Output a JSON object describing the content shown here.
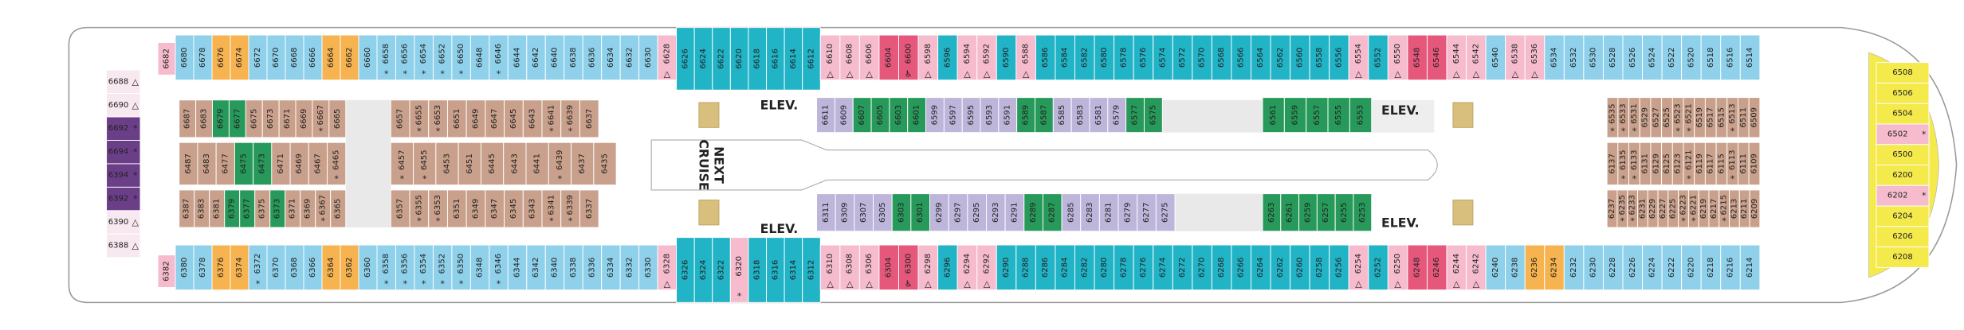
{
  "kinds": {
    "b": "#8fd0ea",
    "t": "#21b3c6",
    "p": "#f6bccd",
    "r": "#e5577b",
    "o": "#f6b34f",
    "w": "#c9a08b",
    "g": "#27995a",
    "l": "#bdb5da",
    "u": "#6b3f88",
    "y": "#f4ea4c",
    "x": "#f8e8ef"
  },
  "labels": {
    "elev": [
      "ELEV.",
      "ELEV.",
      "ELEV.",
      "ELEV."
    ],
    "next": [
      "NEXT",
      "CRUISE"
    ]
  },
  "sections": [
    {
      "kind": "b",
      "cabins": [
        {
          "n": "6680"
        },
        {
          "n": "6678"
        },
        {
          "n": "6676",
          "k": "o"
        },
        {
          "n": "6674",
          "k": "o"
        },
        {
          "n": "6672"
        },
        {
          "n": "6670"
        },
        {
          "n": "6668"
        },
        {
          "n": "6666"
        },
        {
          "n": "6664",
          "k": "o"
        },
        {
          "n": "6662",
          "k": "o"
        },
        {
          "n": "6660"
        }
      ]
    },
    {
      "kind": "b",
      "cabins": [
        {
          "n": "6658",
          "s": "*"
        },
        {
          "n": "6656",
          "s": "*"
        },
        {
          "n": "6654",
          "s": "*"
        },
        {
          "n": "6652",
          "s": "*"
        },
        {
          "n": "6650",
          "s": "*"
        },
        {
          "n": "6648"
        },
        {
          "n": "6646",
          "s": "*"
        },
        {
          "n": "6644"
        },
        {
          "n": "6642"
        },
        {
          "n": "6640"
        },
        {
          "n": "6638"
        },
        {
          "n": "6636"
        },
        {
          "n": "6634"
        },
        {
          "n": "6632"
        },
        {
          "n": "6630"
        },
        {
          "n": "6628",
          "k": "p",
          "s": "△"
        }
      ]
    },
    {
      "kind": "t",
      "cabins": [
        {
          "n": "6626"
        },
        {
          "n": "6624"
        },
        {
          "n": "6622"
        },
        {
          "n": "6620"
        },
        {
          "n": "6618"
        },
        {
          "n": "6616"
        },
        {
          "n": "6614"
        },
        {
          "n": "6612"
        }
      ]
    },
    {
      "kind": "t",
      "cabins": [
        {
          "n": "6610",
          "k": "p",
          "s": "△"
        },
        {
          "n": "6608",
          "k": "p",
          "s": "△"
        },
        {
          "n": "6606",
          "k": "p",
          "s": "△"
        },
        {
          "n": "6604",
          "k": "r"
        },
        {
          "n": "6600",
          "k": "r",
          "s": "♿"
        },
        {
          "n": "6598",
          "k": "p",
          "s": "△"
        },
        {
          "n": "6596"
        },
        {
          "n": "6594",
          "k": "p",
          "s": "△"
        },
        {
          "n": "6592",
          "k": "p",
          "s": "△"
        },
        {
          "n": "6590"
        },
        {
          "n": "6588",
          "k": "p",
          "s": "△"
        },
        {
          "n": "6586"
        },
        {
          "n": "6584"
        },
        {
          "n": "6582"
        },
        {
          "n": "6580"
        },
        {
          "n": "6578"
        },
        {
          "n": "6576"
        },
        {
          "n": "6574"
        },
        {
          "n": "6572"
        },
        {
          "n": "6570"
        },
        {
          "n": "6568"
        },
        {
          "n": "6566"
        },
        {
          "n": "6564"
        },
        {
          "n": "6562"
        },
        {
          "n": "6560"
        },
        {
          "n": "6558"
        },
        {
          "n": "6556"
        },
        {
          "n": "6554",
          "k": "p",
          "s": "△"
        },
        {
          "n": "6552"
        },
        {
          "n": "6550",
          "k": "p",
          "s": "△"
        },
        {
          "n": "6548",
          "k": "r"
        },
        {
          "n": "6546",
          "k": "r"
        },
        {
          "n": "6544",
          "k": "p",
          "s": "△"
        },
        {
          "n": "6542",
          "k": "p",
          "s": "△"
        },
        {
          "n": "6540",
          "k": "b"
        },
        {
          "n": "6538",
          "k": "p",
          "s": "△"
        },
        {
          "n": "6536",
          "k": "p",
          "s": "△"
        },
        {
          "n": "6534",
          "k": "b"
        },
        {
          "n": "6532",
          "k": "b"
        },
        {
          "n": "6530",
          "k": "b"
        },
        {
          "n": "6528",
          "k": "b"
        },
        {
          "n": "6526",
          "k": "b"
        },
        {
          "n": "6524",
          "k": "b"
        },
        {
          "n": "6522",
          "k": "b"
        },
        {
          "n": "6520",
          "k": "b"
        },
        {
          "n": "6518",
          "k": "b"
        },
        {
          "n": "6516",
          "k": "b"
        },
        {
          "n": "6514",
          "k": "b"
        }
      ]
    },
    {
      "kind": "w",
      "cabins": [
        {
          "n": "6687"
        },
        {
          "n": "6683"
        },
        {
          "n": "6679",
          "k": "g"
        },
        {
          "n": "6677",
          "k": "g"
        },
        {
          "n": "6675"
        },
        {
          "n": "6673"
        },
        {
          "n": "6671"
        },
        {
          "n": "6669"
        },
        {
          "n": "6667",
          "s": "*"
        },
        {
          "n": "6665"
        }
      ]
    },
    {
      "kind": "w",
      "cabins": [
        {
          "n": "6657"
        },
        {
          "n": "6655",
          "s": "*"
        },
        {
          "n": "6653",
          "s": "*"
        },
        {
          "n": "6651"
        },
        {
          "n": "6649"
        },
        {
          "n": "6647"
        },
        {
          "n": "6645"
        },
        {
          "n": "6643"
        },
        {
          "n": "6641",
          "s": "*"
        },
        {
          "n": "6639",
          "s": "*"
        },
        {
          "n": "6637"
        }
      ]
    },
    {
      "kind": "w",
      "cabins": [
        {
          "n": "6487"
        },
        {
          "n": "6483"
        },
        {
          "n": "6477"
        },
        {
          "n": "6475",
          "k": "g"
        },
        {
          "n": "6473",
          "k": "g"
        },
        {
          "n": "6471"
        },
        {
          "n": "6469"
        },
        {
          "n": "6467"
        },
        {
          "n": "6465",
          "s": "*"
        }
      ]
    },
    {
      "kind": "w",
      "cabins": [
        {
          "n": "6457",
          "s": "*"
        },
        {
          "n": "6455",
          "s": "*"
        },
        {
          "n": "6453"
        },
        {
          "n": "6451"
        },
        {
          "n": "6445"
        },
        {
          "n": "6443"
        },
        {
          "n": "6441"
        },
        {
          "n": "6439",
          "s": "*"
        },
        {
          "n": "6437"
        },
        {
          "n": "6435"
        }
      ]
    },
    {
      "kind": "w",
      "cabins": [
        {
          "n": "6387"
        },
        {
          "n": "6383"
        },
        {
          "n": "6381"
        },
        {
          "n": "6379",
          "k": "g"
        },
        {
          "n": "6377",
          "k": "g"
        },
        {
          "n": "6375"
        },
        {
          "n": "6373",
          "k": "g"
        },
        {
          "n": "6371"
        },
        {
          "n": "6369"
        },
        {
          "n": "6367",
          "s": "*"
        },
        {
          "n": "6365"
        }
      ]
    },
    {
      "kind": "w",
      "cabins": [
        {
          "n": "6357"
        },
        {
          "n": "6355",
          "s": "*"
        },
        {
          "n": "6353",
          "s": "*"
        },
        {
          "n": "6351"
        },
        {
          "n": "6349"
        },
        {
          "n": "6347"
        },
        {
          "n": "6345"
        },
        {
          "n": "6343"
        },
        {
          "n": "6341",
          "s": "*"
        },
        {
          "n": "6339",
          "s": "*"
        },
        {
          "n": "6337"
        }
      ]
    },
    {
      "kind": "b",
      "cabins": [
        {
          "n": "6380"
        },
        {
          "n": "6378"
        },
        {
          "n": "6376",
          "k": "o"
        },
        {
          "n": "6374",
          "k": "o"
        },
        {
          "n": "6372",
          "s": "*"
        },
        {
          "n": "6370"
        },
        {
          "n": "6368"
        },
        {
          "n": "6366"
        },
        {
          "n": "6364",
          "k": "o"
        },
        {
          "n": "6362",
          "k": "o"
        },
        {
          "n": "6360"
        }
      ]
    },
    {
      "kind": "b",
      "cabins": [
        {
          "n": "6358",
          "s": "*"
        },
        {
          "n": "6356",
          "s": "*"
        },
        {
          "n": "6354",
          "s": "*"
        },
        {
          "n": "6352",
          "s": "*"
        },
        {
          "n": "6350",
          "s": "*"
        },
        {
          "n": "6348"
        },
        {
          "n": "6346",
          "s": "*"
        },
        {
          "n": "6344"
        },
        {
          "n": "6342"
        },
        {
          "n": "6340"
        },
        {
          "n": "6338"
        },
        {
          "n": "6336"
        },
        {
          "n": "6334"
        },
        {
          "n": "6332"
        },
        {
          "n": "6330"
        },
        {
          "n": "6328",
          "k": "p",
          "s": "△"
        }
      ]
    },
    {
      "kind": "t",
      "cabins": [
        {
          "n": "6326"
        },
        {
          "n": "6324"
        },
        {
          "n": "6322"
        },
        {
          "n": "6320",
          "k": "p",
          "s": "*"
        },
        {
          "n": "6318"
        },
        {
          "n": "6316"
        },
        {
          "n": "6314"
        },
        {
          "n": "6312"
        }
      ]
    },
    {
      "kind": "t",
      "cabins": [
        {
          "n": "6310",
          "k": "p",
          "s": "△"
        },
        {
          "n": "6308",
          "k": "p",
          "s": "△"
        },
        {
          "n": "6306",
          "k": "p",
          "s": "△"
        },
        {
          "n": "6304",
          "k": "r"
        },
        {
          "n": "6300",
          "k": "r",
          "s": "♿"
        },
        {
          "n": "6298",
          "k": "p",
          "s": "△"
        },
        {
          "n": "6296"
        },
        {
          "n": "6294",
          "k": "p",
          "s": "△"
        },
        {
          "n": "6292",
          "k": "p",
          "s": "△"
        },
        {
          "n": "6290"
        },
        {
          "n": "6288"
        },
        {
          "n": "6286"
        },
        {
          "n": "6284"
        },
        {
          "n": "6282"
        },
        {
          "n": "6280"
        },
        {
          "n": "6278"
        },
        {
          "n": "6276"
        },
        {
          "n": "6274"
        },
        {
          "n": "6272"
        },
        {
          "n": "6270"
        },
        {
          "n": "6268"
        },
        {
          "n": "6266"
        },
        {
          "n": "6264"
        },
        {
          "n": "6262"
        },
        {
          "n": "6260"
        },
        {
          "n": "6258"
        },
        {
          "n": "6256"
        },
        {
          "n": "6254",
          "k": "p",
          "s": "△"
        },
        {
          "n": "6252"
        },
        {
          "n": "6250",
          "k": "p",
          "s": "△"
        },
        {
          "n": "6248",
          "k": "r"
        },
        {
          "n": "6246",
          "k": "r"
        },
        {
          "n": "6244",
          "k": "p",
          "s": "△"
        },
        {
          "n": "6242",
          "k": "p",
          "s": "△"
        },
        {
          "n": "6240",
          "k": "b"
        },
        {
          "n": "6238",
          "k": "b"
        },
        {
          "n": "6236",
          "k": "o"
        },
        {
          "n": "6234",
          "k": "o"
        },
        {
          "n": "6232",
          "k": "b"
        },
        {
          "n": "6230",
          "k": "b"
        },
        {
          "n": "6228",
          "k": "b"
        },
        {
          "n": "6226",
          "k": "b"
        },
        {
          "n": "6224",
          "k": "b"
        },
        {
          "n": "6222",
          "k": "b"
        },
        {
          "n": "6220",
          "k": "b"
        },
        {
          "n": "6218",
          "k": "b"
        },
        {
          "n": "6216",
          "k": "b"
        },
        {
          "n": "6214",
          "k": "b"
        }
      ]
    },
    {
      "kind": "l",
      "cabins": [
        {
          "n": "6611"
        },
        {
          "n": "6609"
        },
        {
          "n": "6607",
          "k": "g"
        },
        {
          "n": "6605",
          "k": "g"
        },
        {
          "n": "6603",
          "k": "g"
        },
        {
          "n": "6601",
          "k": "g"
        },
        {
          "n": "6599"
        },
        {
          "n": "6597"
        },
        {
          "n": "6595"
        },
        {
          "n": "6593"
        },
        {
          "n": "6591"
        },
        {
          "n": "6589",
          "k": "g"
        },
        {
          "n": "6587",
          "k": "g"
        },
        {
          "n": "6585"
        },
        {
          "n": "6583"
        },
        {
          "n": "6581"
        },
        {
          "n": "6579"
        },
        {
          "n": "6577",
          "k": "g"
        },
        {
          "n": "6575",
          "k": "g"
        }
      ]
    },
    {
      "kind": "g",
      "cabins": [
        {
          "n": "6561"
        },
        {
          "n": "6559"
        },
        {
          "n": "6557"
        },
        {
          "n": "6555"
        },
        {
          "n": "6553"
        }
      ]
    },
    {
      "kind": "l",
      "cabins": [
        {
          "n": "6311"
        },
        {
          "n": "6309"
        },
        {
          "n": "6307"
        },
        {
          "n": "6305"
        },
        {
          "n": "6303",
          "k": "g"
        },
        {
          "n": "6301",
          "k": "g"
        },
        {
          "n": "6299"
        },
        {
          "n": "6297"
        },
        {
          "n": "6295"
        },
        {
          "n": "6293"
        },
        {
          "n": "6291"
        },
        {
          "n": "6289",
          "k": "g"
        },
        {
          "n": "6287",
          "k": "g"
        },
        {
          "n": "6285"
        },
        {
          "n": "6283"
        },
        {
          "n": "6281"
        },
        {
          "n": "6279"
        },
        {
          "n": "6277"
        },
        {
          "n": "6275"
        }
      ]
    },
    {
      "kind": "g",
      "cabins": [
        {
          "n": "6263"
        },
        {
          "n": "6261"
        },
        {
          "n": "6259"
        },
        {
          "n": "6257"
        },
        {
          "n": "6255"
        },
        {
          "n": "6253"
        }
      ]
    },
    {
      "kind": "w",
      "cabins": [
        {
          "n": "6535",
          "s": "*"
        },
        {
          "n": "6533",
          "s": "*"
        },
        {
          "n": "6531",
          "s": "*"
        },
        {
          "n": "6529"
        },
        {
          "n": "6527"
        },
        {
          "n": "6525"
        },
        {
          "n": "6523",
          "s": "*"
        },
        {
          "n": "6521",
          "s": "*"
        },
        {
          "n": "6519"
        },
        {
          "n": "6517"
        },
        {
          "n": "6515"
        },
        {
          "n": "6513",
          "s": "*"
        },
        {
          "n": "6511"
        },
        {
          "n": "6509"
        }
      ]
    },
    {
      "kind": "w",
      "cabins": [
        {
          "n": "6137"
        },
        {
          "n": "6135",
          "s": "*"
        },
        {
          "n": "6133",
          "s": "*"
        },
        {
          "n": "6131"
        },
        {
          "n": "6129"
        },
        {
          "n": "6125"
        },
        {
          "n": "6123"
        },
        {
          "n": "6121",
          "s": "*"
        },
        {
          "n": "6119"
        },
        {
          "n": "6117"
        },
        {
          "n": "6115"
        },
        {
          "n": "6113",
          "s": "*"
        },
        {
          "n": "6111"
        },
        {
          "n": "6109"
        }
      ]
    },
    {
      "kind": "w",
      "cabins": [
        {
          "n": "6237"
        },
        {
          "n": "6235",
          "s": "*"
        },
        {
          "n": "6233",
          "s": "*"
        },
        {
          "n": "6231"
        },
        {
          "n": "6229"
        },
        {
          "n": "6227"
        },
        {
          "n": "6225"
        },
        {
          "n": "6223",
          "s": "*"
        },
        {
          "n": "6221",
          "s": "*"
        },
        {
          "n": "6219"
        },
        {
          "n": "6217"
        },
        {
          "n": "6215",
          "s": "*"
        },
        {
          "n": "6213"
        },
        {
          "n": "6211"
        },
        {
          "n": "6209"
        }
      ]
    },
    {
      "kind": "u",
      "cabins": [
        {
          "n": "6688",
          "k": "x",
          "s": "△"
        },
        {
          "n": "6690",
          "k": "x",
          "s": "△"
        },
        {
          "n": "6692",
          "s": "*"
        },
        {
          "n": "6694",
          "s": "*"
        },
        {
          "n": "6394",
          "s": "*"
        },
        {
          "n": "6392",
          "s": "*"
        },
        {
          "n": "6390",
          "k": "x",
          "s": "△"
        },
        {
          "n": "6388",
          "k": "x",
          "s": "△"
        }
      ]
    },
    {
      "kind": "y",
      "cabins": [
        {
          "n": "6508"
        },
        {
          "n": "6506"
        },
        {
          "n": "6504"
        },
        {
          "n": "6502",
          "k": "p",
          "s": "*"
        },
        {
          "n": "6500"
        },
        {
          "n": "6200"
        },
        {
          "n": "6202",
          "k": "p",
          "s": "*"
        },
        {
          "n": "6204"
        },
        {
          "n": "6206"
        },
        {
          "n": "6208"
        }
      ]
    },
    {
      "kind": "p",
      "cabins": [
        {
          "n": "6682"
        }
      ]
    },
    {
      "kind": "p",
      "cabins": [
        {
          "n": "6382"
        }
      ]
    }
  ]
}
